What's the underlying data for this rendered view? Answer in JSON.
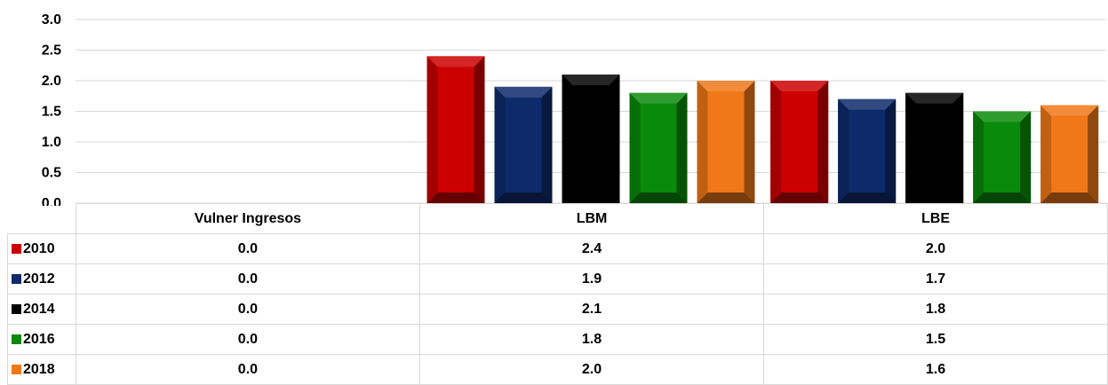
{
  "chart_data": {
    "type": "bar",
    "categories": [
      "Vulner Ingresos",
      "LBM",
      "LBE"
    ],
    "series": [
      {
        "name": "2010",
        "color": "#cc0000",
        "values": [
          0.0,
          2.4,
          2.0
        ]
      },
      {
        "name": "2012",
        "color": "#0d2a6b",
        "values": [
          0.0,
          1.9,
          1.7
        ]
      },
      {
        "name": "2014",
        "color": "#000000",
        "values": [
          0.0,
          2.1,
          1.8
        ]
      },
      {
        "name": "2016",
        "color": "#0a8a0a",
        "values": [
          0.0,
          1.8,
          1.5
        ]
      },
      {
        "name": "2018",
        "color": "#f07818",
        "values": [
          0.0,
          2.0,
          1.6
        ]
      }
    ],
    "table_values": [
      [
        "0.0",
        "2.4",
        "2.0"
      ],
      [
        "0.0",
        "1.9",
        "1.7"
      ],
      [
        "0.0",
        "2.1",
        "1.8"
      ],
      [
        "0.0",
        "1.8",
        "1.5"
      ],
      [
        "0.0",
        "2.0",
        "1.6"
      ]
    ],
    "ylim": [
      0,
      3.0
    ],
    "yticks": [
      "0.0",
      "0.5",
      "1.0",
      "1.5",
      "2.0",
      "2.5",
      "3.0"
    ],
    "grid": true,
    "legend": "in data table",
    "title": "",
    "xlabel": "",
    "ylabel": ""
  }
}
